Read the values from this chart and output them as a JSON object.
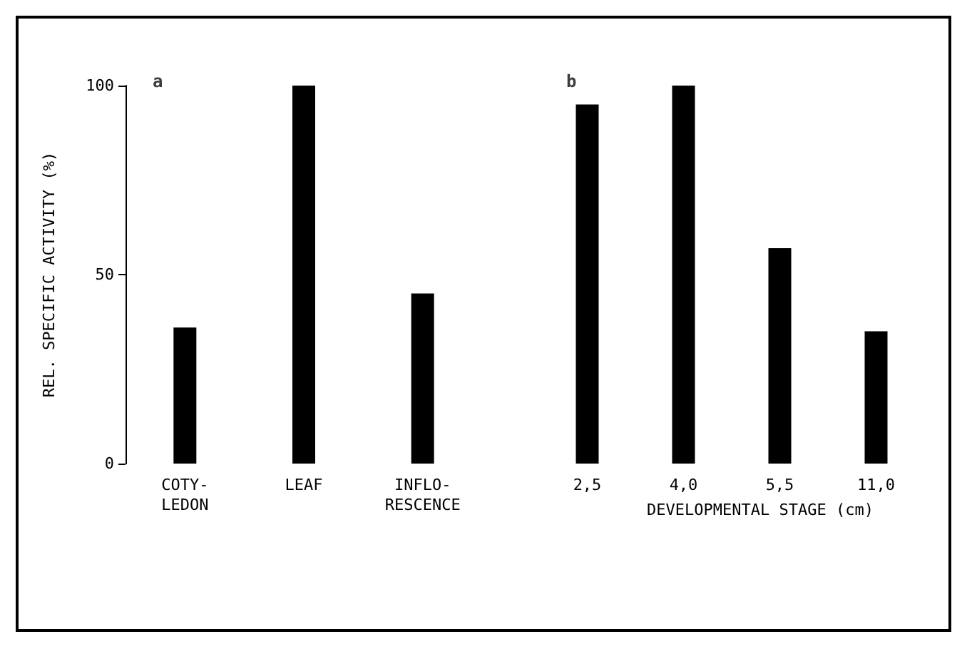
{
  "chart_data": [
    {
      "type": "bar",
      "title": "a",
      "ylabel": "REL. SPECIFIC ACTIVITY (%)",
      "categories": [
        "COTY-\nLEDON",
        "LEAF",
        "INFLO-\nRESCENCE"
      ],
      "values": [
        36,
        100,
        45
      ],
      "color": "#000000",
      "ylim": [
        0,
        100
      ],
      "yticks": [
        0,
        50,
        100
      ],
      "grid": false
    },
    {
      "type": "bar",
      "title": "b",
      "xlabel": "DEVELOPMENTAL STAGE (cm)",
      "categories": [
        "2,5",
        "4,0",
        "5,5",
        "11,0"
      ],
      "values": [
        95,
        100,
        57,
        35
      ],
      "color": "#000000",
      "ylim": [
        0,
        100
      ],
      "tick_labels": "x",
      "grid": false
    }
  ]
}
